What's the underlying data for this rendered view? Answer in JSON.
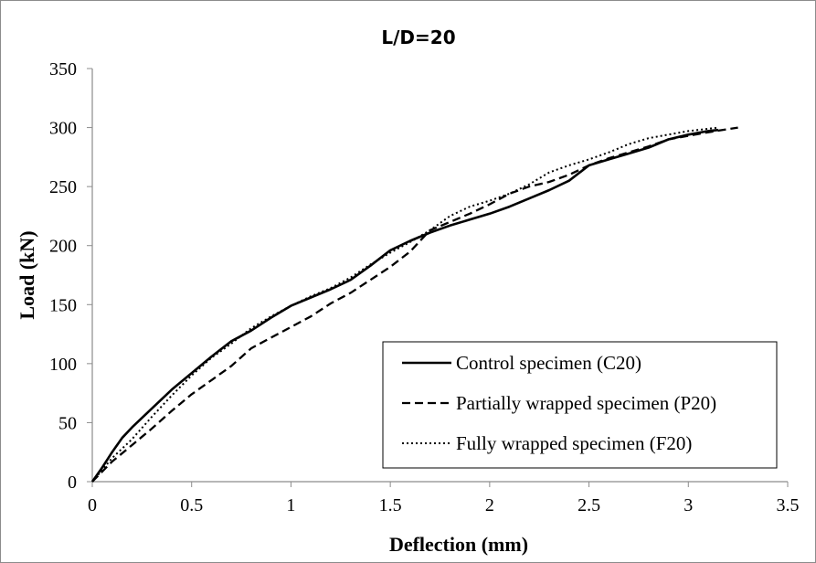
{
  "chart_data": {
    "type": "line",
    "title": "L/D=20",
    "xlabel": "Deflection  (mm)",
    "ylabel": "Load (kN)",
    "xlim": [
      0,
      3.5
    ],
    "ylim": [
      0,
      350
    ],
    "xticks": [
      "0",
      "0.5",
      "1",
      "1.5",
      "2",
      "2.5",
      "3",
      "3.5"
    ],
    "yticks": [
      "0",
      "50",
      "100",
      "150",
      "200",
      "250",
      "300",
      "350"
    ],
    "grid": false,
    "legend_position": "bottom-right",
    "series": [
      {
        "name": "Control specimen (C20)",
        "style": "solid",
        "color": "#000000",
        "points": [
          [
            0,
            0
          ],
          [
            0.05,
            12
          ],
          [
            0.1,
            25
          ],
          [
            0.15,
            37
          ],
          [
            0.2,
            46
          ],
          [
            0.3,
            62
          ],
          [
            0.4,
            78
          ],
          [
            0.5,
            92
          ],
          [
            0.6,
            106
          ],
          [
            0.7,
            119
          ],
          [
            0.8,
            128
          ],
          [
            0.9,
            139
          ],
          [
            1.0,
            149
          ],
          [
            1.1,
            156
          ],
          [
            1.2,
            163
          ],
          [
            1.3,
            171
          ],
          [
            1.4,
            183
          ],
          [
            1.5,
            196
          ],
          [
            1.6,
            204
          ],
          [
            1.7,
            211
          ],
          [
            1.8,
            217
          ],
          [
            1.9,
            222
          ],
          [
            2.0,
            227
          ],
          [
            2.1,
            233
          ],
          [
            2.2,
            240
          ],
          [
            2.3,
            247
          ],
          [
            2.4,
            255
          ],
          [
            2.5,
            268
          ],
          [
            2.6,
            273
          ],
          [
            2.7,
            278
          ],
          [
            2.8,
            283
          ],
          [
            2.9,
            290
          ],
          [
            3.0,
            294
          ],
          [
            3.1,
            297
          ],
          [
            3.15,
            298
          ]
        ]
      },
      {
        "name": "Partially wrapped specimen (P20)",
        "style": "dashed",
        "color": "#000000",
        "points": [
          [
            0,
            0
          ],
          [
            0.1,
            17
          ],
          [
            0.2,
            31
          ],
          [
            0.3,
            45
          ],
          [
            0.4,
            60
          ],
          [
            0.5,
            74
          ],
          [
            0.6,
            86
          ],
          [
            0.7,
            98
          ],
          [
            0.8,
            113
          ],
          [
            0.9,
            122
          ],
          [
            1.0,
            131
          ],
          [
            1.1,
            140
          ],
          [
            1.2,
            151
          ],
          [
            1.3,
            160
          ],
          [
            1.4,
            171
          ],
          [
            1.5,
            182
          ],
          [
            1.6,
            195
          ],
          [
            1.7,
            213
          ],
          [
            1.8,
            220
          ],
          [
            1.9,
            227
          ],
          [
            2.0,
            235
          ],
          [
            2.1,
            244
          ],
          [
            2.2,
            250
          ],
          [
            2.3,
            254
          ],
          [
            2.4,
            260
          ],
          [
            2.5,
            268
          ],
          [
            2.6,
            274
          ],
          [
            2.7,
            279
          ],
          [
            2.8,
            284
          ],
          [
            2.9,
            290
          ],
          [
            3.0,
            293
          ],
          [
            3.1,
            296
          ],
          [
            3.25,
            300
          ]
        ]
      },
      {
        "name": "Fully wrapped specimen (F20)",
        "style": "dotted",
        "color": "#000000",
        "points": [
          [
            0,
            0
          ],
          [
            0.1,
            20
          ],
          [
            0.2,
            36
          ],
          [
            0.3,
            55
          ],
          [
            0.4,
            73
          ],
          [
            0.5,
            90
          ],
          [
            0.6,
            105
          ],
          [
            0.7,
            117
          ],
          [
            0.8,
            130
          ],
          [
            0.9,
            140
          ],
          [
            1.0,
            149
          ],
          [
            1.1,
            157
          ],
          [
            1.2,
            164
          ],
          [
            1.3,
            173
          ],
          [
            1.4,
            184
          ],
          [
            1.5,
            194
          ],
          [
            1.6,
            203
          ],
          [
            1.7,
            213
          ],
          [
            1.8,
            225
          ],
          [
            1.9,
            233
          ],
          [
            2.0,
            238
          ],
          [
            2.1,
            244
          ],
          [
            2.2,
            252
          ],
          [
            2.3,
            262
          ],
          [
            2.4,
            268
          ],
          [
            2.5,
            273
          ],
          [
            2.6,
            279
          ],
          [
            2.7,
            286
          ],
          [
            2.8,
            291
          ],
          [
            2.9,
            294
          ],
          [
            3.0,
            297
          ],
          [
            3.1,
            299
          ],
          [
            3.15,
            300
          ]
        ]
      }
    ]
  }
}
